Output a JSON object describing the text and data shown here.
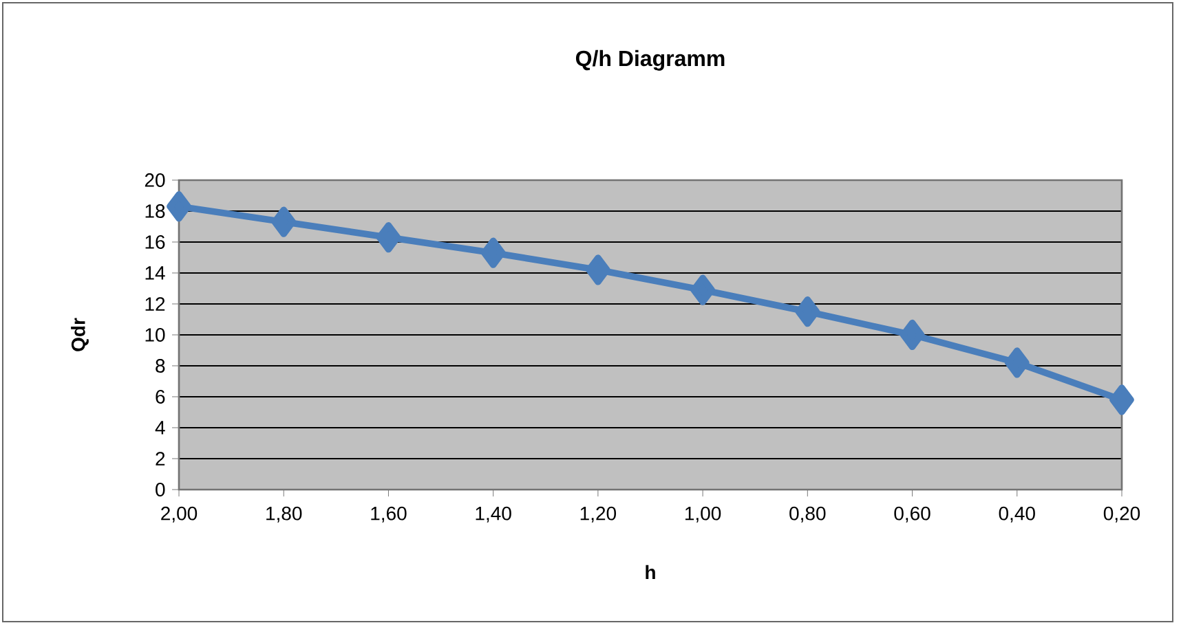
{
  "chart_data": {
    "type": "line",
    "title": "Q/h Diagramm",
    "xlabel": "h",
    "ylabel": "Qdr",
    "categories": [
      "2,00",
      "1,80",
      "1,60",
      "1,40",
      "1,20",
      "1,00",
      "0,80",
      "0,60",
      "0,40",
      "0,20"
    ],
    "series": [
      {
        "color": "#4a7ebb",
        "values": [
          18.3,
          17.3,
          16.3,
          15.3,
          14.2,
          12.9,
          11.5,
          10.0,
          8.2,
          5.8
        ]
      }
    ],
    "ylim": [
      0,
      20
    ],
    "yticks": [
      0,
      2,
      4,
      6,
      8,
      10,
      12,
      14,
      16,
      18,
      20
    ],
    "grid": "y",
    "marker": "diamond",
    "legend": false
  }
}
